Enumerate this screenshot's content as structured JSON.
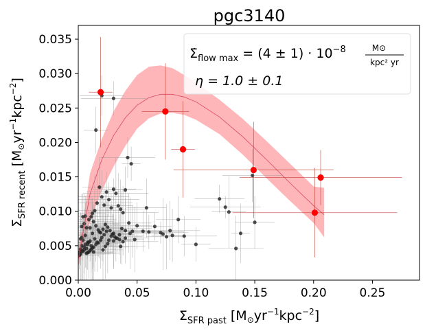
{
  "chart_data": {
    "type": "scatter",
    "title": "pgc3140",
    "xlabel": {
      "symbol": "Σ",
      "sub": "SFR past",
      "unit_prefix": "[M",
      "unit_sub": "⊙",
      "unit_mid": "yr",
      "sup1": "−1",
      "unit_kpc": "kpc",
      "sup2": "−2",
      "unit_suffix": "]"
    },
    "ylabel": {
      "symbol": "Σ",
      "sub": "SFR recent",
      "unit_prefix": "[M",
      "unit_sub": "⊙",
      "unit_mid": "yr",
      "sup1": "−1",
      "unit_kpc": "kpc",
      "sup2": "−2",
      "unit_suffix": "]"
    },
    "xlim": [
      0,
      0.29
    ],
    "ylim": [
      0,
      0.037
    ],
    "x_ticks": [
      0.0,
      0.05,
      0.1,
      0.15,
      0.2,
      0.25
    ],
    "x_tick_labels": [
      "0.00",
      "0.05",
      "0.10",
      "0.15",
      "0.20",
      "0.25"
    ],
    "y_ticks": [
      0,
      0.005,
      0.01,
      0.015,
      0.02,
      0.025,
      0.03,
      0.035
    ],
    "y_tick_labels": [
      "0.000",
      "0.005",
      "0.010",
      "0.015",
      "0.020",
      "0.025",
      "0.030",
      "0.035"
    ],
    "annotation": {
      "line1_lhs": "Σ̇",
      "line1_lhs_sub": "flow max",
      "line1_rhs": "= (4 ± 1) · 10",
      "line1_exp": "−8",
      "frac_num": "M⊙",
      "frac_den": "kpc² yr",
      "line2": "η = 1.0 ± 0.1"
    },
    "model": {
      "x": [
        0.0,
        0.01,
        0.02,
        0.03,
        0.04,
        0.05,
        0.06,
        0.07,
        0.08,
        0.09,
        0.1,
        0.12,
        0.14,
        0.16,
        0.18,
        0.2,
        0.209
      ],
      "y": [
        0.003,
        0.0125,
        0.0175,
        0.021,
        0.0236,
        0.0254,
        0.0265,
        0.027,
        0.027,
        0.0266,
        0.0259,
        0.0237,
        0.0208,
        0.0175,
        0.0141,
        0.0108,
        0.0095
      ],
      "lower": [
        0.002,
        0.0085,
        0.013,
        0.0165,
        0.0195,
        0.022,
        0.0235,
        0.0242,
        0.0243,
        0.024,
        0.0233,
        0.0212,
        0.0182,
        0.0148,
        0.0115,
        0.0083,
        0.0062
      ],
      "upper": [
        0.004,
        0.0155,
        0.0205,
        0.0245,
        0.0275,
        0.0298,
        0.031,
        0.0312,
        0.0308,
        0.0298,
        0.0287,
        0.0262,
        0.0234,
        0.0202,
        0.0169,
        0.0136,
        0.0134
      ],
      "band_color": "#ffb6b9",
      "line_color": "#d9485f"
    },
    "highlighted_points": {
      "color": "#ff0000",
      "x": [
        0.019,
        0.074,
        0.089,
        0.149,
        0.206,
        0.201
      ],
      "y": [
        0.0273,
        0.0245,
        0.019,
        0.016,
        0.0149,
        0.0098
      ],
      "xerr": [
        0.01,
        0.02,
        0.01,
        0.068,
        0.069,
        0.07
      ],
      "yerr": [
        0.008,
        0.007,
        0.007,
        0.007,
        0.004,
        0.0065
      ]
    },
    "background_points": {
      "color": "#222222",
      "x": [
        0.001,
        0.002,
        0.003,
        0.004,
        0.005,
        0.006,
        0.007,
        0.008,
        0.009,
        0.01,
        0.011,
        0.012,
        0.013,
        0.002,
        0.003,
        0.004,
        0.006,
        0.008,
        0.01,
        0.012,
        0.014,
        0.016,
        0.018,
        0.02,
        0.022,
        0.024,
        0.026,
        0.028,
        0.03,
        0.003,
        0.005,
        0.007,
        0.009,
        0.011,
        0.013,
        0.015,
        0.017,
        0.019,
        0.021,
        0.023,
        0.025,
        0.027,
        0.029,
        0.031,
        0.033,
        0.035,
        0.037,
        0.04,
        0.043,
        0.046,
        0.05,
        0.055,
        0.06,
        0.065,
        0.07,
        0.072,
        0.075,
        0.078,
        0.08,
        0.085,
        0.09,
        0.1,
        0.12,
        0.125,
        0.128,
        0.134,
        0.138,
        0.15,
        0.004,
        0.006,
        0.008,
        0.01,
        0.012,
        0.014,
        0.016,
        0.018,
        0.02,
        0.022,
        0.024,
        0.026,
        0.028,
        0.03,
        0.032,
        0.034,
        0.036,
        0.038,
        0.04,
        0.042,
        0.045,
        0.001,
        0.002,
        0.003,
        0.005,
        0.007,
        0.009,
        0.011,
        0.013,
        0.015,
        0.017,
        0.019,
        0.021,
        0.023,
        0.025,
        0.03,
        0.032,
        0.035,
        0.036,
        0.038,
        0.04,
        0.044,
        0.048,
        0.058,
        0.148,
        0.015,
        0.02,
        0.03
      ],
      "y": [
        0.004,
        0.0045,
        0.005,
        0.0042,
        0.0048,
        0.0052,
        0.0046,
        0.004,
        0.0055,
        0.0043,
        0.005,
        0.0047,
        0.0041,
        0.006,
        0.0062,
        0.0058,
        0.0065,
        0.0052,
        0.0057,
        0.0068,
        0.006,
        0.0055,
        0.007,
        0.0062,
        0.0066,
        0.0071,
        0.0058,
        0.0064,
        0.0068,
        0.0078,
        0.0082,
        0.0076,
        0.0088,
        0.0092,
        0.0085,
        0.0079,
        0.0073,
        0.0069,
        0.0074,
        0.0081,
        0.0077,
        0.0072,
        0.0067,
        0.0063,
        0.0061,
        0.0059,
        0.0075,
        0.0072,
        0.0083,
        0.0071,
        0.0079,
        0.0071,
        0.007,
        0.0078,
        0.0069,
        0.0067,
        0.0063,
        0.0072,
        0.0065,
        0.0088,
        0.0064,
        0.0052,
        0.0118,
        0.0106,
        0.0099,
        0.0046,
        0.0068,
        0.0084,
        0.0092,
        0.0093,
        0.0055,
        0.0076,
        0.0097,
        0.0101,
        0.0112,
        0.0135,
        0.0121,
        0.0109,
        0.0128,
        0.0117,
        0.0105,
        0.0132,
        0.0126,
        0.0108,
        0.0103,
        0.0098,
        0.0131,
        0.0178,
        0.0169,
        0.0036,
        0.0038,
        0.0042,
        0.0044,
        0.0039,
        0.0041,
        0.0045,
        0.0048,
        0.0052,
        0.0054,
        0.0058,
        0.0044,
        0.0049,
        0.0053,
        0.0057,
        0.0061,
        0.0066,
        0.0049,
        0.0056,
        0.0061,
        0.0068,
        0.0059,
        0.0105,
        0.0152,
        0.0218,
        0.0268,
        0.0264
      ]
    }
  }
}
